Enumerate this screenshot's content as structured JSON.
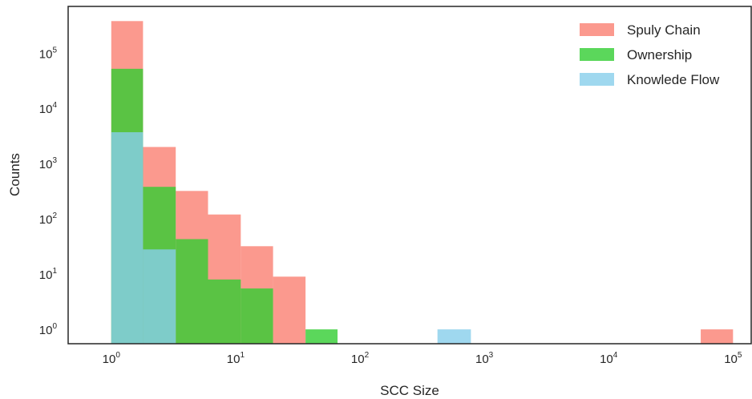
{
  "chart_data": {
    "type": "bar",
    "xlabel": "SCC Size",
    "ylabel": "Counts",
    "x_scale": "log",
    "y_scale": "log",
    "xlim": [
      0.45,
      140000
    ],
    "ylim": [
      0.55,
      700000
    ],
    "grid": false,
    "legend_position": "top-right",
    "x_ticks": [
      {
        "base": "10",
        "exp": "0",
        "value": 1
      },
      {
        "base": "10",
        "exp": "1",
        "value": 10
      },
      {
        "base": "10",
        "exp": "2",
        "value": 100
      },
      {
        "base": "10",
        "exp": "3",
        "value": 1000
      },
      {
        "base": "10",
        "exp": "4",
        "value": 10000
      },
      {
        "base": "10",
        "exp": "5",
        "value": 100000
      }
    ],
    "y_ticks": [
      {
        "base": "10",
        "exp": "0",
        "value": 1
      },
      {
        "base": "10",
        "exp": "1",
        "value": 10
      },
      {
        "base": "10",
        "exp": "2",
        "value": 100
      },
      {
        "base": "10",
        "exp": "3",
        "value": 1000
      },
      {
        "base": "10",
        "exp": "4",
        "value": 10000
      },
      {
        "base": "10",
        "exp": "5",
        "value": 100000
      }
    ],
    "series": [
      {
        "name": "Spuly Chain",
        "color": "#fa8072",
        "bins": [
          {
            "x0": 1.0,
            "x1": 1.8,
            "count": 380000
          },
          {
            "x0": 1.8,
            "x1": 3.3,
            "count": 2000
          },
          {
            "x0": 3.3,
            "x1": 6.0,
            "count": 320
          },
          {
            "x0": 6.0,
            "x1": 11.0,
            "count": 120
          },
          {
            "x0": 11.0,
            "x1": 20.0,
            "count": 32
          },
          {
            "x0": 20.0,
            "x1": 36.5,
            "count": 9
          },
          {
            "x0": 55000,
            "x1": 100000,
            "count": 1
          }
        ]
      },
      {
        "name": "Ownership",
        "color": "#32cd32",
        "bins": [
          {
            "x0": 1.0,
            "x1": 1.8,
            "count": 52000
          },
          {
            "x0": 1.8,
            "x1": 3.3,
            "count": 380
          },
          {
            "x0": 3.3,
            "x1": 6.0,
            "count": 43
          },
          {
            "x0": 6.0,
            "x1": 11.0,
            "count": 8
          },
          {
            "x0": 11.0,
            "x1": 20.0,
            "count": 5.5
          },
          {
            "x0": 36.5,
            "x1": 66.0,
            "count": 1
          }
        ]
      },
      {
        "name": "Knowlede Flow",
        "color": "#87ceeb",
        "bins": [
          {
            "x0": 1.0,
            "x1": 1.8,
            "count": 3700
          },
          {
            "x0": 1.8,
            "x1": 3.3,
            "count": 28
          },
          {
            "x0": 420,
            "x1": 780,
            "count": 1
          }
        ]
      }
    ]
  }
}
